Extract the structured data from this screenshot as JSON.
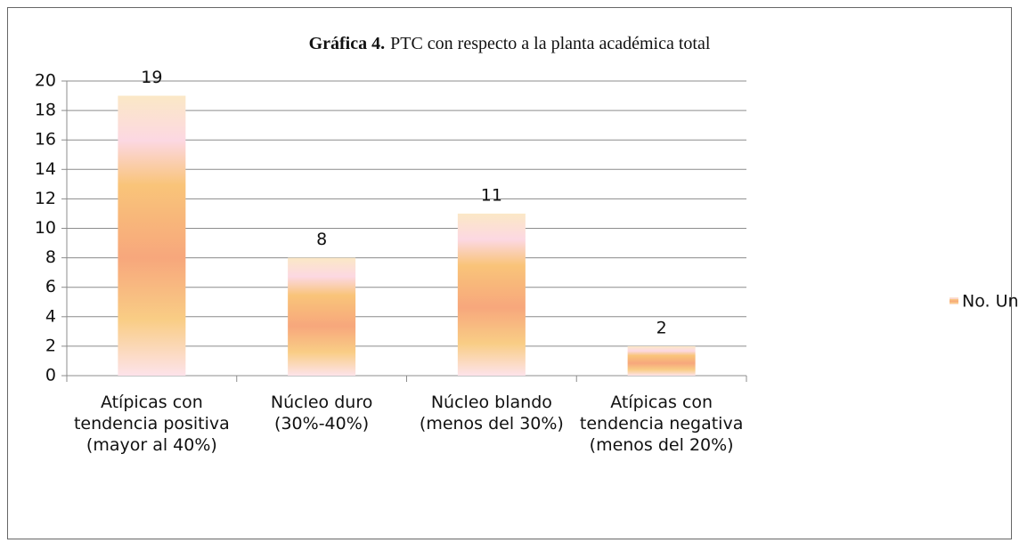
{
  "chart_data": {
    "type": "bar",
    "title_label": "Gráfica 4.",
    "title": "PTC con respecto a la planta académica total",
    "categories": [
      "Atípicas con tendencia positiva (mayor al 40%)",
      "Núcleo duro (30%-40%)",
      "Núcleo blando (menos del 30%)",
      "Atípicas con tendencia negativa (menos del 20%)"
    ],
    "series": [
      {
        "name": "No. Universiidades",
        "color": "#f7a77c",
        "values": [
          19,
          8,
          11,
          2
        ]
      }
    ],
    "ylim": [
      0,
      20
    ],
    "yticks": [
      0,
      2,
      4,
      6,
      8,
      10,
      12,
      14,
      16,
      18,
      20
    ],
    "grid": true,
    "legend": "right"
  }
}
